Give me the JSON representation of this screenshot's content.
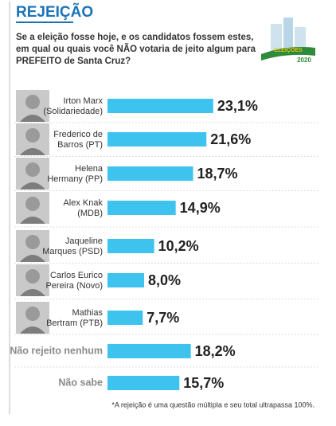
{
  "chart_data": {
    "type": "bar",
    "title": "REJEIÇÃO",
    "subtitle": [
      "Se a eleição fosse hoje, e os candidatos fossem estes,",
      "em qual ou quais você NÃO votaria de jeito algum para",
      "PREFEITO de Santa Cruz?"
    ],
    "badge": [
      "ELEIÇÕES",
      "2020"
    ],
    "categories": [
      [
        "Irton Marx",
        "(Solidariedade)"
      ],
      [
        "Frederico de",
        "Barros (PT)"
      ],
      [
        "Helena",
        "Hermany (PP)"
      ],
      [
        "Alex Knak",
        "(MDB)"
      ],
      [
        "Jaqueline",
        "Marques (PSD)"
      ],
      [
        "Carlos Eurico",
        "Pereira (Novo)"
      ],
      [
        "Mathias",
        "Bertram (PTB)"
      ],
      [
        "Não rejeito nenhum"
      ],
      [
        "Não sabe"
      ]
    ],
    "values": [
      23.1,
      21.6,
      18.7,
      14.9,
      10.2,
      8.0,
      7.7,
      18.2,
      15.7
    ],
    "value_labels": [
      "23,1%",
      "21,6%",
      "18,7%",
      "14,9%",
      "10,2%",
      "8,0%",
      "7,7%",
      "18,2%",
      "15,7%"
    ],
    "color": "#3ec3ee",
    "xlim": [
      0,
      40
    ],
    "note": "*A rejeição é uma questão múltipla e seu total ultrapassa 100%."
  }
}
